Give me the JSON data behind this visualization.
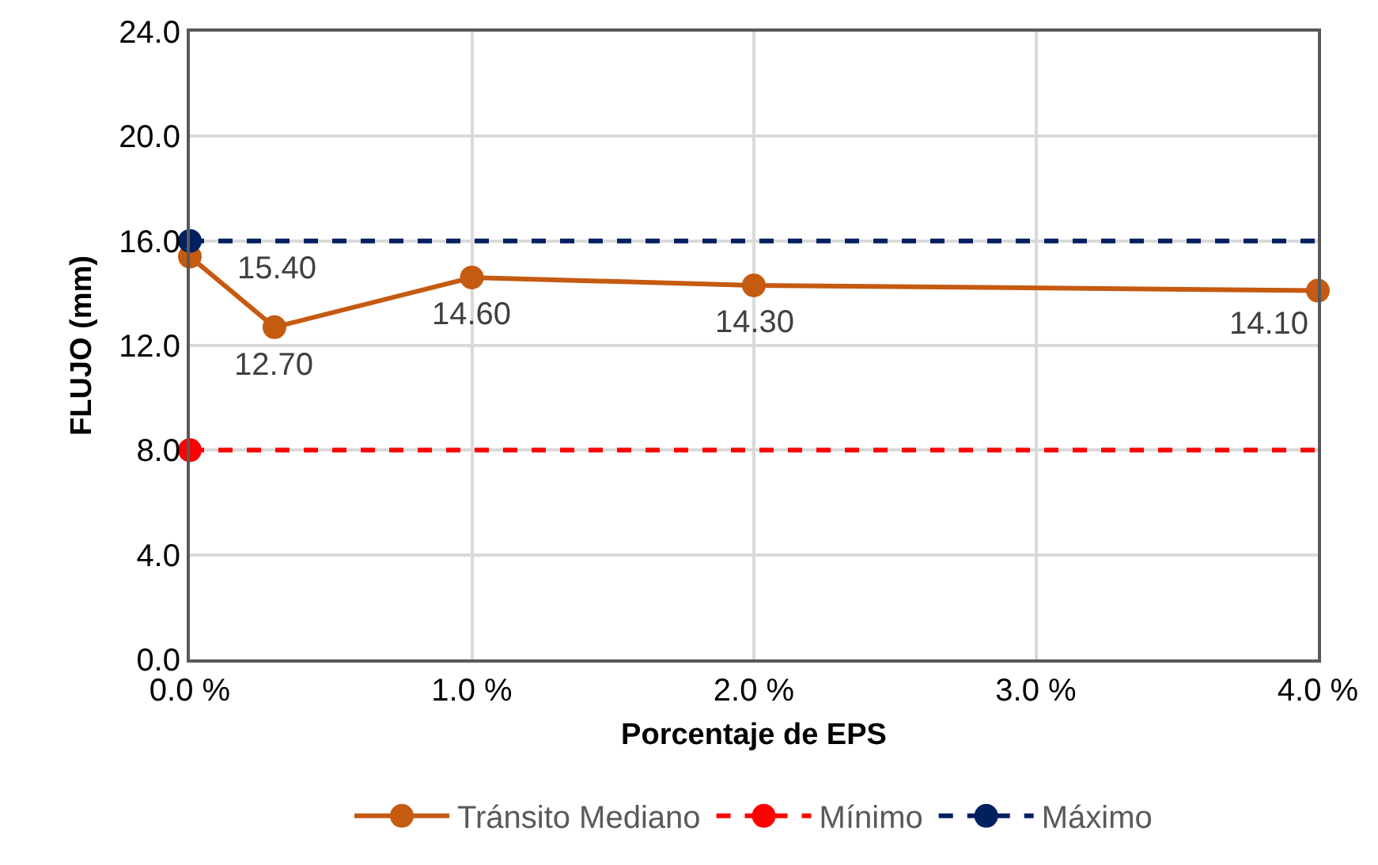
{
  "chart_data": {
    "type": "line",
    "xlabel": "Porcentaje de EPS",
    "ylabel": "FLUJO (mm)",
    "xlim": [
      0,
      4
    ],
    "xticks": [
      {
        "value": 0,
        "label": "0.0 %"
      },
      {
        "value": 1,
        "label": "1.0 %"
      },
      {
        "value": 2,
        "label": "2.0 %"
      },
      {
        "value": 3,
        "label": "3.0 %"
      },
      {
        "value": 4,
        "label": "4.0 %"
      }
    ],
    "ylim": [
      0,
      24
    ],
    "yticks": [
      {
        "value": 0,
        "label": "0.0"
      },
      {
        "value": 4,
        "label": "4.0"
      },
      {
        "value": 8,
        "label": "8.0"
      },
      {
        "value": 12,
        "label": "12.0"
      },
      {
        "value": 16,
        "label": "16.0"
      },
      {
        "value": 20,
        "label": "20.0"
      },
      {
        "value": 24,
        "label": "24.0"
      }
    ],
    "grid": true,
    "legend": "bottom",
    "series": [
      {
        "name": "Tránsito Mediano",
        "color": "#c55a11",
        "x": [
          0,
          0.3,
          1,
          2,
          4
        ],
        "values": [
          15.4,
          12.7,
          14.6,
          14.3,
          14.1
        ],
        "value_labels": [
          "15.40",
          "12.70",
          "14.60",
          "14.30",
          "14.10"
        ],
        "marker": "circle",
        "line_style": "solid"
      },
      {
        "name": "Mínimo",
        "color": "#ff0000",
        "x": [
          0
        ],
        "values": [
          8
        ],
        "marker": "circle",
        "line_style": "dashed"
      },
      {
        "name": "Máximo",
        "color": "#002060",
        "x": [
          0
        ],
        "values": [
          16
        ],
        "marker": "circle",
        "line_style": "dashed"
      }
    ],
    "ref_lines": [
      {
        "axis": "y",
        "value": 8,
        "color": "#ff0000",
        "line_style": "dashed"
      },
      {
        "axis": "y",
        "value": 16,
        "color": "#002060",
        "line_style": "dashed"
      }
    ]
  }
}
